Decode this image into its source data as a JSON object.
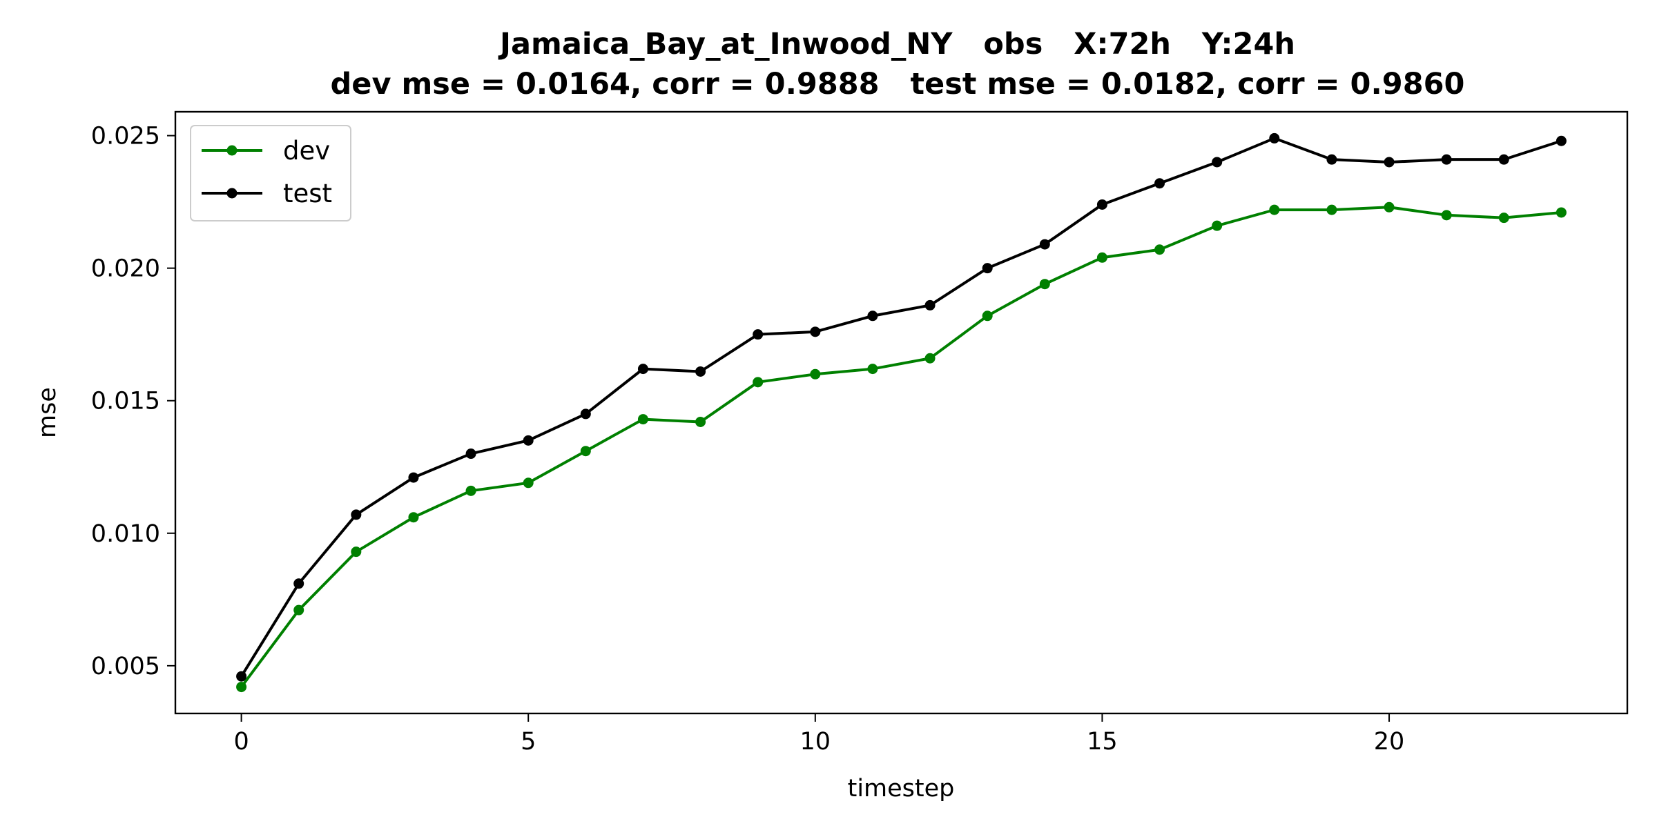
{
  "chart_data": {
    "type": "line",
    "title": "Jamaica_Bay_at_Inwood_NY   obs   X:72h   Y:24h",
    "subtitle": "dev mse = 0.0164, corr = 0.9888   test mse = 0.0182, corr = 0.9860",
    "xlabel": "timestep",
    "ylabel": "mse",
    "xlim": [
      -1.15,
      24.15
    ],
    "ylim": [
      0.0032,
      0.0259
    ],
    "xticks": [
      0,
      5,
      10,
      15,
      20
    ],
    "yticks": [
      0.005,
      0.01,
      0.015,
      0.02,
      0.025
    ],
    "ytick_labels": [
      "0.005",
      "0.010",
      "0.015",
      "0.020",
      "0.025"
    ],
    "grid": false,
    "legend_position": "top-left",
    "x": [
      0,
      1,
      2,
      3,
      4,
      5,
      6,
      7,
      8,
      9,
      10,
      11,
      12,
      13,
      14,
      15,
      16,
      17,
      18,
      19,
      20,
      21,
      22,
      23
    ],
    "series": [
      {
        "name": "dev",
        "color": "#008000",
        "values": [
          0.0042,
          0.0071,
          0.0093,
          0.0106,
          0.0116,
          0.0119,
          0.0131,
          0.0143,
          0.0142,
          0.0157,
          0.016,
          0.0162,
          0.0166,
          0.0182,
          0.0194,
          0.0204,
          0.0207,
          0.0216,
          0.0222,
          0.0222,
          0.0223,
          0.022,
          0.0219,
          0.0221
        ]
      },
      {
        "name": "test",
        "color": "#000000",
        "values": [
          0.0046,
          0.0081,
          0.0107,
          0.0121,
          0.013,
          0.0135,
          0.0145,
          0.0162,
          0.0161,
          0.0175,
          0.0176,
          0.0182,
          0.0186,
          0.02,
          0.0209,
          0.0224,
          0.0232,
          0.024,
          0.0249,
          0.0241,
          0.024,
          0.0241,
          0.0241,
          0.0248
        ]
      }
    ]
  }
}
